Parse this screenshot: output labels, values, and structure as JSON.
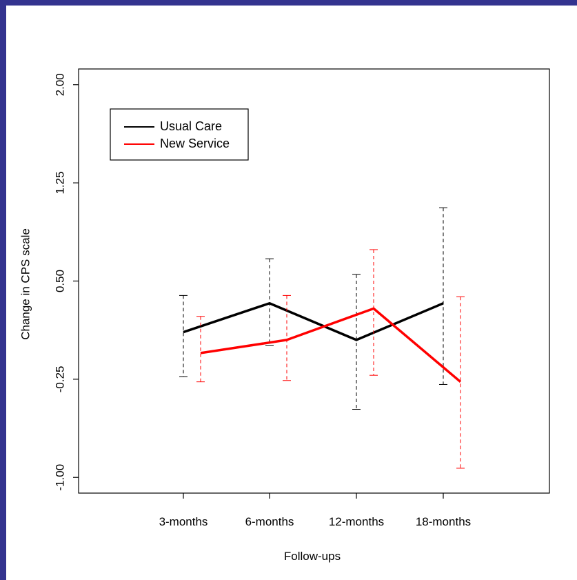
{
  "chart_data": {
    "type": "line",
    "title": "",
    "xlabel": "Follow-ups",
    "ylabel": "Change in CPS scale",
    "categories": [
      "3-months",
      "6-months",
      "12-months",
      "18-months"
    ],
    "yticks": [
      "-1.00",
      "-0.25",
      "0.50",
      "1.25",
      "2.00"
    ],
    "ylim": [
      -1.12,
      2.12
    ],
    "grid": false,
    "legend_position": "top-left",
    "series": [
      {
        "name": "Usual Care",
        "color": "#000000",
        "values": [
          0.11,
          0.33,
          0.05,
          0.33
        ],
        "lower": [
          -0.23,
          0.01,
          -0.48,
          -0.29
        ],
        "upper": [
          0.39,
          0.67,
          0.55,
          1.06
        ]
      },
      {
        "name": "New Service",
        "color": "#ff0000",
        "values": [
          -0.05,
          0.05,
          0.29,
          -0.27
        ],
        "lower": [
          -0.27,
          -0.26,
          -0.22,
          -0.93
        ],
        "upper": [
          0.23,
          0.39,
          0.74,
          0.38
        ]
      }
    ]
  }
}
